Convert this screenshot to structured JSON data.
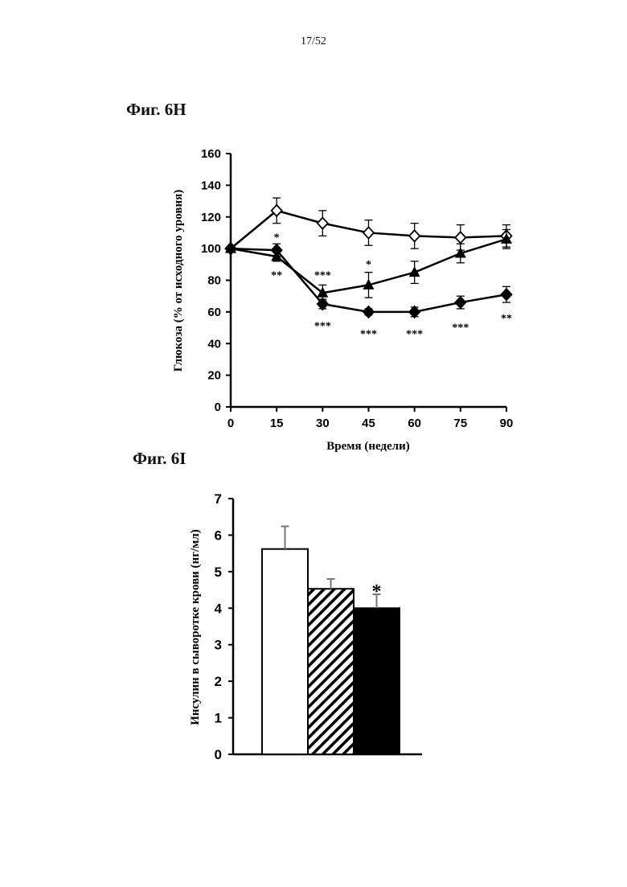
{
  "page_number": "17/52",
  "chart_data": [
    {
      "figure_label": "Фиг. 6H",
      "type": "line",
      "xlabel": "Время (недели)",
      "ylabel": "Глюкоза (% от исходного уровня)",
      "xlim": [
        0,
        90
      ],
      "ylim": [
        0,
        160
      ],
      "x_ticks": [
        0,
        15,
        30,
        45,
        60,
        75,
        90
      ],
      "y_ticks": [
        0,
        20,
        40,
        60,
        80,
        100,
        120,
        140,
        160
      ],
      "x": [
        0,
        15,
        30,
        45,
        60,
        75,
        90
      ],
      "grid": false,
      "series": [
        {
          "marker": "open-diamond",
          "values": [
            100,
            124,
            116,
            110,
            108,
            107,
            108
          ],
          "errors": [
            0,
            8,
            8,
            8,
            8,
            8,
            7
          ]
        },
        {
          "marker": "filled-triangle",
          "values": [
            100,
            95,
            72,
            77,
            85,
            97,
            106
          ],
          "errors": [
            0,
            3,
            5,
            8,
            7,
            6,
            6
          ]
        },
        {
          "marker": "filled-diamond",
          "values": [
            100,
            99,
            65,
            60,
            60,
            66,
            71
          ],
          "errors": [
            0,
            4,
            3,
            2,
            3,
            4,
            5
          ]
        }
      ],
      "annotations": [
        {
          "x": 15,
          "text": "*",
          "position": "above",
          "value": 105
        },
        {
          "x": 15,
          "text": "**",
          "position": "below",
          "value": 85
        },
        {
          "x": 30,
          "text": "***",
          "position": "above",
          "value": 81
        },
        {
          "x": 30,
          "text": "***",
          "position": "below",
          "value": 53
        },
        {
          "x": 45,
          "text": "*",
          "position": "above",
          "value": 88
        },
        {
          "x": 45,
          "text": "***",
          "position": "below",
          "value": 48
        },
        {
          "x": 60,
          "text": "***",
          "position": "below",
          "value": 48
        },
        {
          "x": 75,
          "text": "***",
          "position": "below",
          "value": 52
        },
        {
          "x": 90,
          "text": "**",
          "position": "below",
          "value": 58
        }
      ]
    },
    {
      "figure_label": "Фиг. 6I",
      "type": "bar",
      "ylabel": "Инсулин в сыворотке крови (нг/мл)",
      "ylim": [
        0,
        7
      ],
      "y_ticks": [
        0,
        1,
        2,
        3,
        4,
        5,
        6,
        7
      ],
      "bars": [
        {
          "fill": "white",
          "value": 5.62,
          "error": 0.62
        },
        {
          "fill": "hatched",
          "value": 4.53,
          "error": 0.27
        },
        {
          "fill": "black",
          "value": 4.0,
          "error": 0.38
        }
      ],
      "annotations": [
        {
          "bar": 2,
          "text": "*"
        }
      ]
    }
  ]
}
